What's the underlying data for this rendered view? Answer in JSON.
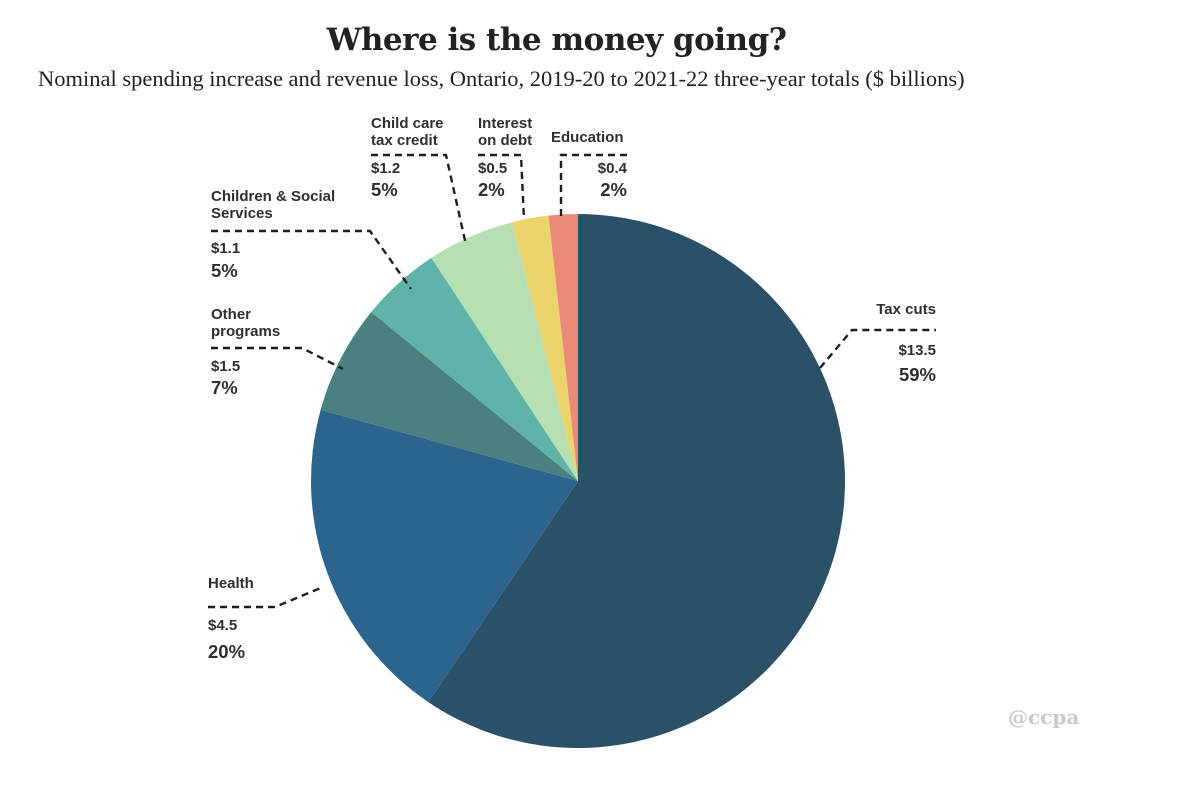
{
  "chart_data": {
    "type": "pie",
    "title": "Where is the money going?",
    "subtitle": "Nominal spending increase and revenue loss, Ontario, 2019-20 to 2021-22 three-year totals  ($ billions)",
    "slices": [
      {
        "label": "Tax cuts",
        "value": 13.5,
        "value_label": "$13.5",
        "percent_label": "59%",
        "color": "#2a5168"
      },
      {
        "label": "Health",
        "value": 4.5,
        "value_label": "$4.5",
        "percent_label": "20%",
        "color": "#2c648d"
      },
      {
        "label": "Other programs",
        "value": 1.5,
        "value_label": "$1.5",
        "percent_label": "7%",
        "color": "#4a8080"
      },
      {
        "label": "Children & Social Services",
        "value": 1.1,
        "value_label": "$1.1",
        "percent_label": "5%",
        "color": "#5fb3a8"
      },
      {
        "label": "Child care tax credit",
        "value": 1.2,
        "value_label": "$1.2",
        "percent_label": "5%",
        "color": "#b6dfb3"
      },
      {
        "label": "Interest on debt",
        "value": 0.5,
        "value_label": "$0.5",
        "percent_label": "2%",
        "color": "#ebd46c"
      },
      {
        "label": "Education",
        "value": 0.4,
        "value_label": "$0.4",
        "percent_label": "2%",
        "color": "#ec8a78"
      }
    ]
  },
  "watermark": "@ccpa"
}
